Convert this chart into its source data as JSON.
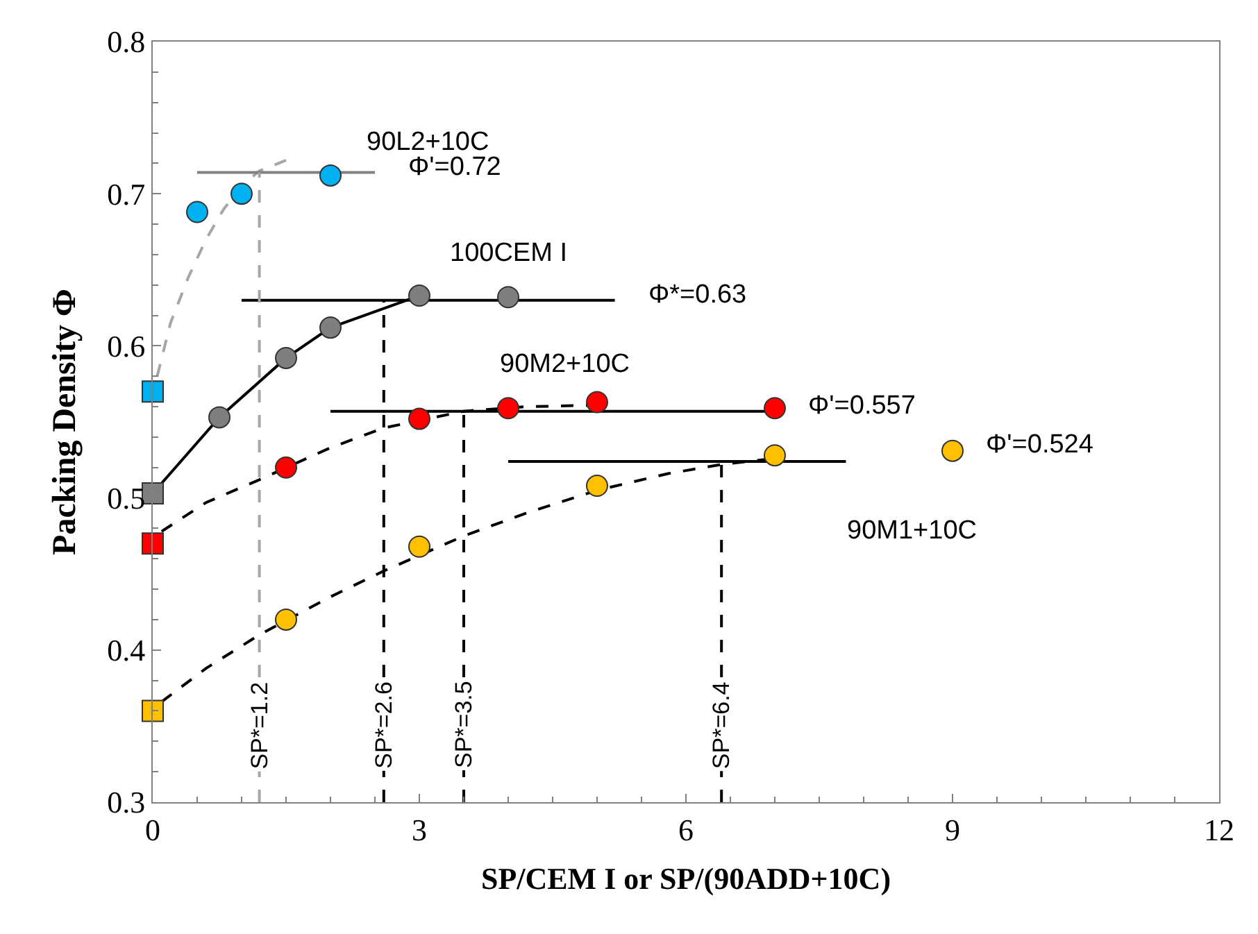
{
  "chart_data": {
    "type": "scatter",
    "xlabel": "SP/CEM I or SP/(90ADD+10C)",
    "ylabel": "Packing Density Φ",
    "xlim": [
      0,
      12
    ],
    "xticks": [
      0,
      3,
      6,
      9,
      12
    ],
    "ylim": [
      0.3,
      0.8
    ],
    "yticks": [
      0.3,
      0.4,
      0.5,
      0.6,
      0.7,
      0.8
    ],
    "legend": false,
    "series": [
      {
        "type": "line",
        "color": "#a6a6a6",
        "line_style": "dashed",
        "x": [
          0.05,
          0.2,
          0.4,
          0.6,
          0.8,
          1.0,
          1.2,
          1.5
        ],
        "values": [
          0.58,
          0.615,
          0.645,
          0.67,
          0.69,
          0.705,
          0.715,
          0.722
        ]
      },
      {
        "type": "line",
        "color": "#000000",
        "line_style": "solid",
        "x": [
          0,
          0.75,
          1.5,
          2,
          3
        ],
        "values": [
          0.503,
          0.553,
          0.592,
          0.612,
          0.633
        ]
      },
      {
        "type": "line",
        "color": "#000000",
        "line_style": "dashed",
        "x": [
          0.1,
          0.6,
          1.2,
          2,
          2.6,
          3.5,
          4.2,
          5
        ],
        "values": [
          0.478,
          0.497,
          0.512,
          0.533,
          0.546,
          0.557,
          0.56,
          0.561
        ]
      },
      {
        "type": "line",
        "color": "#000000",
        "line_style": "dashed",
        "x": [
          0.1,
          0.6,
          1.2,
          2,
          2.6,
          3.5,
          4.2,
          5,
          5.8,
          6.4,
          7
        ],
        "values": [
          0.366,
          0.388,
          0.41,
          0.435,
          0.452,
          0.475,
          0.49,
          0.505,
          0.516,
          0.522,
          0.526
        ]
      },
      {
        "type": "line",
        "color": "#808080",
        "line_style": "solid",
        "x": [
          0.5,
          2.5
        ],
        "values": [
          0.714,
          0.714
        ]
      },
      {
        "type": "line",
        "color": "#000000",
        "line_style": "solid",
        "x": [
          1.0,
          5.2
        ],
        "values": [
          0.63,
          0.63
        ]
      },
      {
        "type": "line",
        "color": "#000000",
        "line_style": "solid",
        "x": [
          2.0,
          7.0
        ],
        "values": [
          0.557,
          0.557
        ]
      },
      {
        "type": "line",
        "color": "#000000",
        "line_style": "solid",
        "x": [
          4.0,
          7.8
        ],
        "values": [
          0.524,
          0.524
        ]
      },
      {
        "type": "line",
        "color": "#a6a6a6",
        "line_style": "dashed",
        "x": [
          1.2,
          1.2
        ],
        "values": [
          0.3,
          0.714
        ]
      },
      {
        "type": "line",
        "color": "#000000",
        "line_style": "dashed",
        "x": [
          2.6,
          2.6
        ],
        "values": [
          0.3,
          0.63
        ]
      },
      {
        "type": "line",
        "color": "#000000",
        "line_style": "dashed",
        "x": [
          3.5,
          3.5
        ],
        "values": [
          0.3,
          0.557
        ]
      },
      {
        "type": "line",
        "color": "#000000",
        "line_style": "dashed",
        "x": [
          6.4,
          6.4
        ],
        "values": [
          0.3,
          0.524
        ]
      },
      {
        "marker": "square",
        "color": "#00b0f0",
        "x": [
          0
        ],
        "values": [
          0.57
        ]
      },
      {
        "marker": "square",
        "color": "#7f7f7f",
        "x": [
          0
        ],
        "values": [
          0.503
        ]
      },
      {
        "marker": "square",
        "color": "#ff0000",
        "x": [
          0
        ],
        "values": [
          0.47
        ]
      },
      {
        "marker": "square",
        "color": "#ffc000",
        "x": [
          0
        ],
        "values": [
          0.36
        ]
      },
      {
        "marker": "circle",
        "name": "90L2+10C",
        "color": "#00b0f0",
        "x": [
          0.5,
          1,
          2
        ],
        "values": [
          0.688,
          0.7,
          0.712
        ]
      },
      {
        "marker": "circle",
        "name": "100CEM I",
        "color": "#7f7f7f",
        "x": [
          0.75,
          1.5,
          2,
          3,
          4
        ],
        "values": [
          0.553,
          0.592,
          0.612,
          0.633,
          0.632
        ]
      },
      {
        "marker": "circle",
        "name": "90M2+10C",
        "color": "#ff0000",
        "x": [
          1.5,
          3,
          4,
          5,
          7
        ],
        "values": [
          0.52,
          0.552,
          0.559,
          0.563,
          0.559
        ]
      },
      {
        "marker": "circle",
        "name": "90M1+10C",
        "color": "#ffc000",
        "x": [
          1.5,
          3,
          5,
          7,
          9
        ],
        "values": [
          0.42,
          0.468,
          0.508,
          0.528,
          0.531
        ]
      }
    ],
    "annotations": [
      {
        "text": "Φ'=0.72",
        "x": 2.5,
        "y": 0.714
      },
      {
        "text": "Φ*=0.63",
        "x": 5.2,
        "y": 0.63
      },
      {
        "text": "Φ'=0.557",
        "x": 7.0,
        "y": 0.557
      },
      {
        "text": "Φ'=0.524",
        "x": 9,
        "y": 0.531
      },
      {
        "text": "SP*=1.2",
        "x": 1.2,
        "y": 0.3
      },
      {
        "text": "SP*=2.6",
        "x": 2.6,
        "y": 0.3
      },
      {
        "text": "SP*=3.5",
        "x": 3.5,
        "y": 0.3
      },
      {
        "text": "SP*=6.4",
        "x": 6.4,
        "y": 0.3
      }
    ]
  }
}
